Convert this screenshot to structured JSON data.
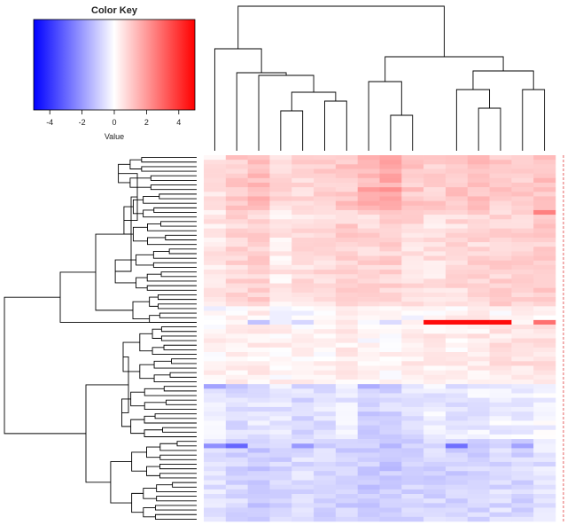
{
  "chart_data": {
    "type": "heatmap",
    "title": "",
    "xlabel": "",
    "ylabel": "",
    "n_rows": 80,
    "n_cols": 16,
    "color_key": {
      "title": "Color Key",
      "xlabel": "Value",
      "range": [
        -5,
        5
      ],
      "ticks": [
        -4,
        -2,
        0,
        2,
        4
      ],
      "tick_labels": [
        "-4",
        "-2",
        "0",
        "2",
        "4"
      ],
      "colors": {
        "low": "#0000ff",
        "mid": "#ffffff",
        "high": "#ff0000"
      }
    },
    "column_order": [
      1,
      2,
      3,
      4,
      5,
      6,
      7,
      8,
      9,
      10,
      11,
      12,
      13,
      14,
      15,
      16
    ],
    "column_clusters": [
      [
        1
      ],
      [
        2,
        3,
        4,
        5,
        6,
        7
      ],
      [
        8,
        9,
        10
      ],
      [
        11,
        12,
        13,
        14,
        15,
        16
      ]
    ],
    "row_cluster_sizes": [
      37,
      43
    ],
    "row_sub_clusters": [
      [
        8,
        12,
        10,
        7
      ],
      [
        13,
        12,
        18
      ]
    ],
    "row_groups": [
      {
        "name": "upper-top",
        "rows": [
          0,
          11
        ],
        "profile": [
          0.5,
          1.0,
          1.3,
          0.7,
          0.8,
          0.9,
          1.1,
          1.4,
          1.6,
          1.1,
          1.0,
          1.1,
          1.2,
          1.0,
          1.0,
          1.2
        ]
      },
      {
        "name": "upper-mid",
        "rows": [
          12,
          32
        ],
        "profile": [
          0.4,
          0.8,
          0.9,
          0.4,
          0.6,
          0.7,
          0.9,
          0.8,
          0.9,
          0.7,
          0.6,
          0.7,
          0.8,
          0.9,
          0.8,
          1.0
        ]
      },
      {
        "name": "upper-low",
        "rows": [
          33,
          36
        ],
        "profile": [
          -0.1,
          0.1,
          0.2,
          0.0,
          -0.1,
          0.1,
          0.2,
          0.0,
          0.1,
          0.0,
          0.1,
          0.2,
          0.3,
          0.1,
          0.2,
          0.2
        ]
      },
      {
        "name": "lower-top",
        "rows": [
          37,
          49
        ],
        "profile": [
          0.2,
          0.4,
          0.3,
          0.2,
          0.2,
          0.2,
          0.3,
          0.1,
          0.2,
          0.3,
          0.4,
          0.3,
          0.4,
          0.5,
          0.6,
          0.7
        ]
      },
      {
        "name": "lower-mid",
        "rows": [
          50,
          61
        ],
        "profile": [
          -0.4,
          -0.6,
          -0.5,
          -0.5,
          -0.7,
          -0.6,
          -0.4,
          -0.9,
          -0.8,
          -0.6,
          -0.4,
          -0.5,
          -0.4,
          -0.3,
          -0.3,
          -0.2
        ]
      },
      {
        "name": "lower-bottom",
        "rows": [
          62,
          79
        ],
        "profile": [
          -0.6,
          -0.8,
          -1.0,
          -0.8,
          -0.7,
          -0.8,
          -0.9,
          -1.0,
          -1.1,
          -0.9,
          -0.8,
          -0.9,
          -0.8,
          -0.7,
          -0.8,
          -0.6
        ]
      }
    ],
    "outliers": [
      {
        "row": 36,
        "col": 11,
        "value": 4.8
      },
      {
        "row": 36,
        "col": 12,
        "value": 4.8
      },
      {
        "row": 36,
        "col": 13,
        "value": 4.8
      },
      {
        "row": 36,
        "col": 14,
        "value": 4.8
      },
      {
        "row": 36,
        "col": 16,
        "value": 2.8
      },
      {
        "row": 36,
        "col": 3,
        "value": -1.2
      },
      {
        "row": 36,
        "col": 5,
        "value": -0.8
      },
      {
        "row": 36,
        "col": 9,
        "value": -0.7
      },
      {
        "row": 50,
        "col": 1,
        "value": -1.8
      },
      {
        "row": 50,
        "col": 2,
        "value": -1.2
      },
      {
        "row": 50,
        "col": 8,
        "value": -1.6
      },
      {
        "row": 50,
        "col": 9,
        "value": -1.2
      },
      {
        "row": 63,
        "col": 2,
        "value": -3.0
      },
      {
        "row": 63,
        "col": 1,
        "value": -2.2
      },
      {
        "row": 63,
        "col": 5,
        "value": -2.0
      },
      {
        "row": 63,
        "col": 12,
        "value": -2.8
      },
      {
        "row": 63,
        "col": 15,
        "value": -1.8
      },
      {
        "row": 7,
        "col": 8,
        "value": 2.0
      },
      {
        "row": 7,
        "col": 9,
        "value": 2.2
      },
      {
        "row": 12,
        "col": 16,
        "value": 2.5
      }
    ]
  }
}
